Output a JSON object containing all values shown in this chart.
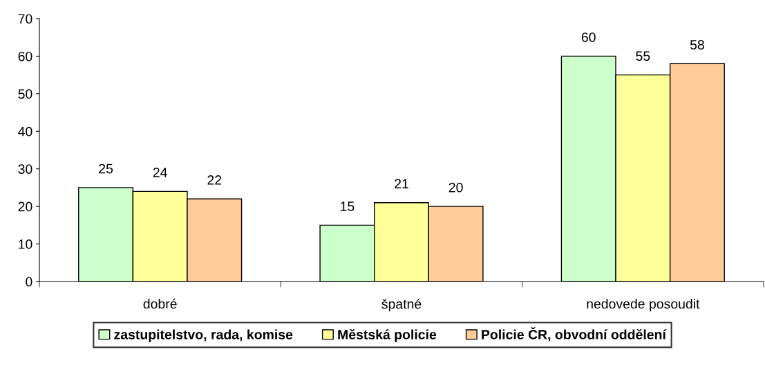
{
  "chart_data": {
    "type": "bar",
    "categories": [
      "dobré",
      "špatné",
      "nedovede posoudit"
    ],
    "series": [
      {
        "name": "zastupitelstvo, rada, komise",
        "color": "#ccffcc",
        "values": [
          25,
          15,
          60
        ]
      },
      {
        "name": "Městská policie",
        "color": "#ffff99",
        "values": [
          24,
          21,
          55
        ]
      },
      {
        "name": "Policie ČR, obvodní oddělení",
        "color": "#ffcc99",
        "values": [
          22,
          20,
          58
        ]
      }
    ],
    "ylim": [
      0,
      70
    ],
    "yticks": [
      0,
      10,
      20,
      30,
      40,
      50,
      60,
      70
    ],
    "grid": false,
    "legend": "bottom",
    "data_labels": true
  }
}
